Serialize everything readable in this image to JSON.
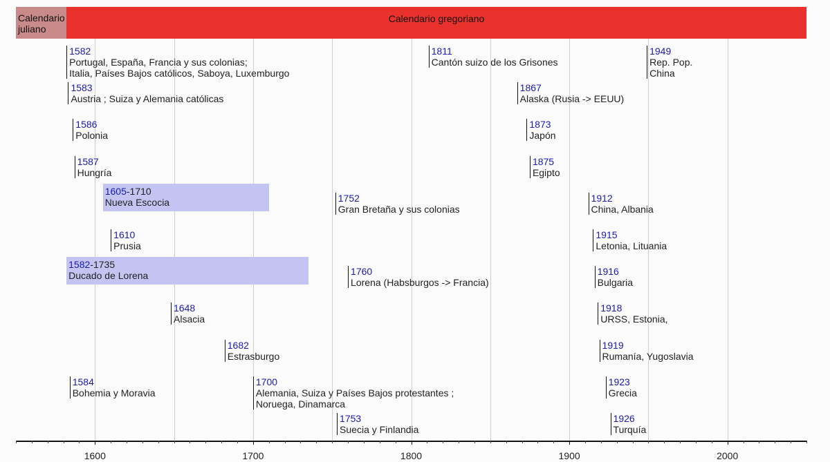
{
  "chart_data": {
    "type": "timeline",
    "xlim": [
      1550,
      2050
    ],
    "x_ticks": [
      1600,
      1700,
      1800,
      1900,
      2000
    ],
    "grid": true,
    "bands": [
      {
        "label": "Calendario\njuliano",
        "start": 1550,
        "end": 1582,
        "color": "#c98a8a"
      },
      {
        "label": "Calendario gregoriano",
        "start": 1582,
        "end": 2050,
        "color": "#e8322b"
      }
    ],
    "events": [
      {
        "year": "1582",
        "label": "Portugal, España, Francia y sus colonias;\nItalia, Países Bajos católicos, Saboya, Luxemburgo",
        "row": 0
      },
      {
        "year": "1583",
        "label": "Austria ; Suiza y Alemania católicas",
        "row": 1
      },
      {
        "year": "1586",
        "label": "Polonia",
        "row": 2
      },
      {
        "year": "1587",
        "label": "Hungría",
        "row": 3
      },
      {
        "year": "1605",
        "end": "1710",
        "label": "Nueva Escocia",
        "row": 4
      },
      {
        "year": "1610",
        "label": "Prusia",
        "row": 5
      },
      {
        "year": "1582",
        "end": "1735",
        "label": "Ducado de Lorena",
        "row": 6
      },
      {
        "year": "1648",
        "label": "Alsacia",
        "row": 7
      },
      {
        "year": "1682",
        "label": "Estrasburgo",
        "row": 8
      },
      {
        "year": "1584",
        "label": "Bohemia y Moravia",
        "row": 9
      },
      {
        "year": "1700",
        "label": "Alemania, Suiza y Países Bajos protestantes ;\nNoruega, Dinamarca",
        "row": 9
      },
      {
        "year": "1752",
        "label": "Gran Bretaña y sus colonias",
        "row": 4
      },
      {
        "year": "1760",
        "label": "Lorena (Habsburgos -> Francia)",
        "row": 6
      },
      {
        "year": "1753",
        "label": "Suecia y Finlandia",
        "row": 10
      },
      {
        "year": "1811",
        "label": "Cantón suizo de los Grisones",
        "row": 0
      },
      {
        "year": "1867",
        "label": "Alaska (Rusia -> EEUU)",
        "row": 1
      },
      {
        "year": "1873",
        "label": "Japón",
        "row": 2
      },
      {
        "year": "1875",
        "label": "Egipto",
        "row": 3
      },
      {
        "year": "1912",
        "label": "China, Albania",
        "row": 4
      },
      {
        "year": "1915",
        "label": "Letonia, Lituania",
        "row": 5
      },
      {
        "year": "1916",
        "label": "Bulgaria",
        "row": 6
      },
      {
        "year": "1918",
        "label": "URSS, Estonia,",
        "row": 7
      },
      {
        "year": "1919",
        "label": "Rumanía, Yugoslavia",
        "row": 8
      },
      {
        "year": "1923",
        "label": "Grecia",
        "row": 9
      },
      {
        "year": "1926",
        "label": "Turquía",
        "row": 10
      },
      {
        "year": "1949",
        "label": "Rep. Pop.\nChina",
        "row": 0
      }
    ]
  }
}
